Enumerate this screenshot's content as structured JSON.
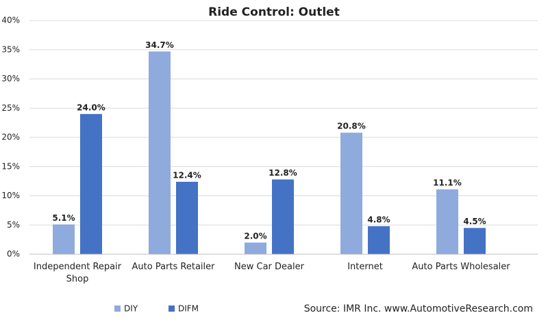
{
  "chart_data": {
    "type": "bar",
    "title": "Ride Control: Outlet",
    "categories": [
      "Independent Repair Shop",
      "Auto Parts Retailer",
      "New Car Dealer",
      "Internet",
      "Auto Parts Wholesaler"
    ],
    "series": [
      {
        "name": "DIY",
        "color": "#8faadc",
        "values": [
          5.1,
          34.7,
          2.0,
          20.8,
          11.1
        ],
        "value_labels": [
          "5.1%",
          "34.7%",
          "2.0%",
          "20.8%",
          "11.1%"
        ]
      },
      {
        "name": "DIFM",
        "color": "#4472c4",
        "values": [
          24.0,
          12.4,
          12.8,
          4.8,
          4.5
        ],
        "value_labels": [
          "24.0%",
          "12.4%",
          "12.8%",
          "4.8%",
          "4.5%"
        ]
      }
    ],
    "ylim": [
      0,
      40
    ],
    "yticks": [
      {
        "value": 0,
        "label": "0%"
      },
      {
        "value": 5,
        "label": "5%"
      },
      {
        "value": 10,
        "label": "10%"
      },
      {
        "value": 15,
        "label": "15%"
      },
      {
        "value": 20,
        "label": "20%"
      },
      {
        "value": 25,
        "label": "25%"
      },
      {
        "value": 30,
        "label": "30%"
      },
      {
        "value": 35,
        "label": "35%"
      },
      {
        "value": 40,
        "label": "40%"
      }
    ],
    "grid": true,
    "legend": "bottom",
    "source": "Source: IMR Inc. www.AutomotiveResearch.com"
  }
}
